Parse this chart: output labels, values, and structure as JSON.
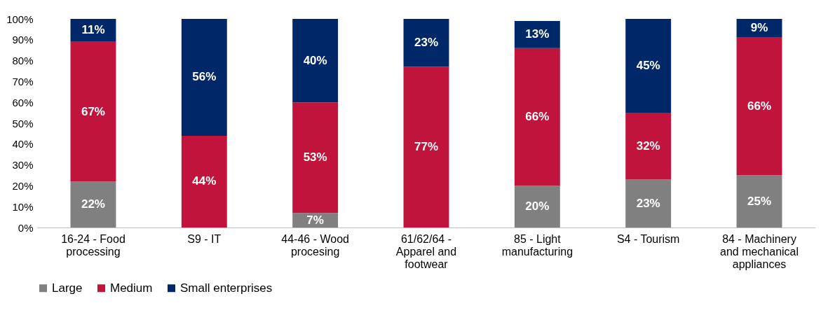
{
  "chart_data": {
    "type": "bar",
    "stacked": true,
    "categories": [
      "16-24 - Food processing",
      "S9 - IT",
      "44-46 - Wood procesing",
      "61/62/64 - Apparel and footwear",
      "85 - Light manufacturing",
      "S4 - Tourism",
      "84 - Machinery and mechanical appliances"
    ],
    "series": [
      {
        "name": "Large",
        "color": "#808080",
        "values": [
          22,
          null,
          7,
          null,
          20,
          23,
          25
        ],
        "value_labels": [
          "22%",
          null,
          "7%",
          null,
          "20%",
          "23%",
          "25%"
        ]
      },
      {
        "name": "Medium",
        "color": "#c0143c",
        "values": [
          67,
          44,
          53,
          77,
          66,
          32,
          66
        ],
        "value_labels": [
          "67%",
          "44%",
          "53%",
          "77%",
          "66%",
          "32%",
          "66%"
        ]
      },
      {
        "name": "Small enterprises",
        "color": "#002868",
        "values": [
          11,
          56,
          40,
          23,
          13,
          45,
          9
        ],
        "value_labels": [
          "11%",
          "56%",
          "40%",
          "23%",
          "13%",
          "45%",
          "9%"
        ]
      }
    ],
    "ylim": [
      0,
      100
    ],
    "yticks": [
      {
        "value": 0,
        "label": "0%"
      },
      {
        "value": 10,
        "label": "10%"
      },
      {
        "value": 20,
        "label": "20%"
      },
      {
        "value": 30,
        "label": "30%"
      },
      {
        "value": 40,
        "label": "40%"
      },
      {
        "value": 50,
        "label": "50%"
      },
      {
        "value": 60,
        "label": "60%"
      },
      {
        "value": 70,
        "label": "70%"
      },
      {
        "value": 80,
        "label": "80%"
      },
      {
        "value": 90,
        "label": "90%"
      },
      {
        "value": 100,
        "label": "100%"
      }
    ],
    "grid": false,
    "legend": "bottom"
  }
}
